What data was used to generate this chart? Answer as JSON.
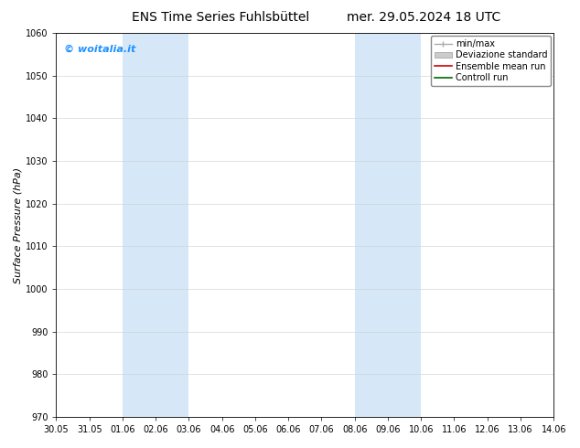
{
  "title_left": "ENS Time Series Fuhlsbüttel",
  "title_right": "mer. 29.05.2024 18 UTC",
  "ylabel": "Surface Pressure (hPa)",
  "ylim": [
    970,
    1060
  ],
  "yticks": [
    970,
    980,
    990,
    1000,
    1010,
    1020,
    1030,
    1040,
    1050,
    1060
  ],
  "xtick_labels": [
    "30.05",
    "31.05",
    "01.06",
    "02.06",
    "03.06",
    "04.06",
    "05.06",
    "06.06",
    "07.06",
    "08.06",
    "09.06",
    "10.06",
    "11.06",
    "12.06",
    "13.06",
    "14.06"
  ],
  "watermark": "© woitalia.it",
  "watermark_color": "#1E90FF",
  "shaded_bands": [
    {
      "x_start": "01.06",
      "x_end": "03.06"
    },
    {
      "x_start": "08.06",
      "x_end": "10.06"
    }
  ],
  "shaded_color": "#D6E8F7",
  "legend_entries": [
    {
      "label": "min/max",
      "color": "#aaaaaa",
      "lw": 1.0,
      "style": "minmax"
    },
    {
      "label": "Deviazione standard",
      "color": "#cccccc",
      "lw": 1.0,
      "style": "band"
    },
    {
      "label": "Ensemble mean run",
      "color": "#cc0000",
      "lw": 1.2,
      "style": "line"
    },
    {
      "label": "Controll run",
      "color": "#006600",
      "lw": 1.2,
      "style": "line"
    }
  ],
  "background_color": "#ffffff",
  "spine_color": "#000000",
  "tick_color": "#000000",
  "title_fontsize": 10,
  "ylabel_fontsize": 8,
  "tick_fontsize": 7,
  "watermark_fontsize": 8,
  "legend_fontsize": 7
}
